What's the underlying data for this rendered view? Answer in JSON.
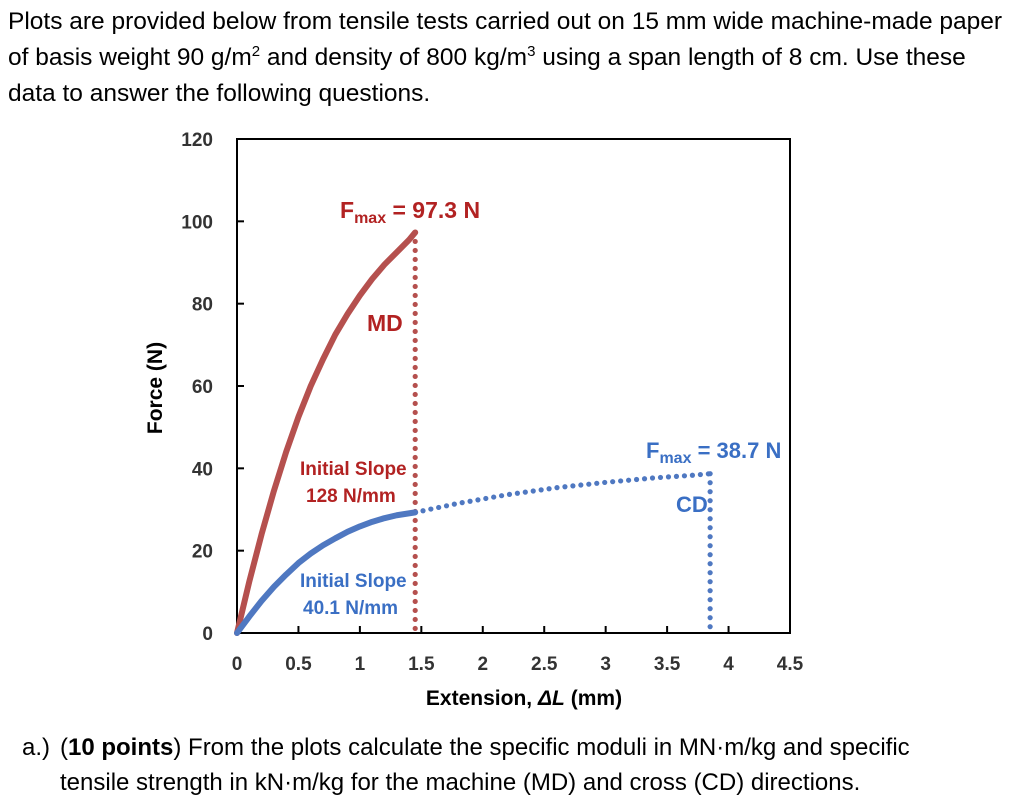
{
  "intro": {
    "part1": "Plots are provided below from tensile tests carried out on 15 mm wide machine-made paper of basis weight 90 g/m",
    "sup1": "2",
    "part2": " and density of 800 kg/m",
    "sup2": "3",
    "part3": " using a span length of 8 cm.  Use these data to answer the following questions."
  },
  "question": {
    "label": "a.)",
    "points_open": "(",
    "points": "10 points",
    "points_close": ")",
    "line1": " From the plots calculate the specific moduli in MN·m/kg and specific",
    "line2": "tensile strength in kN·m/kg for the machine (MD) and cross (CD) directions."
  },
  "chart_data": {
    "type": "line",
    "xlabel_main": "Extension, ",
    "xlabel_italic": "ΔL",
    "xlabel_unit": " (mm)",
    "ylabel": "Force (N)",
    "xlim": [
      0,
      4.5
    ],
    "ylim": [
      0,
      120
    ],
    "x_ticks": [
      "0",
      "0.5",
      "1",
      "1.5",
      "2",
      "2.5",
      "3",
      "3.5",
      "4",
      "4.5"
    ],
    "y_ticks": [
      "0",
      "20",
      "40",
      "60",
      "80",
      "100",
      "120"
    ],
    "grid": false,
    "series": [
      {
        "name": "MD",
        "color": "#b5504e",
        "marker_style": "solid-line",
        "x": [
          0,
          0.1,
          0.2,
          0.3,
          0.4,
          0.5,
          0.6,
          0.7,
          0.8,
          0.9,
          1.0,
          1.1,
          1.2,
          1.3,
          1.4,
          1.45
        ],
        "y": [
          0,
          12.5,
          24,
          34.5,
          44,
          52.5,
          60,
          66.5,
          72.5,
          77.5,
          82,
          86,
          89.5,
          92.5,
          95.5,
          97.3
        ]
      },
      {
        "name": "MD",
        "color": "#b5504e",
        "marker_style": "dotted-drop",
        "x": [
          1.45,
          1.45
        ],
        "y": [
          97.3,
          0
        ]
      },
      {
        "name": "CD",
        "color": "#4f78c1",
        "marker_style": "solid-line",
        "x": [
          0,
          0.1,
          0.2,
          0.3,
          0.4,
          0.5,
          0.6,
          0.7,
          0.8,
          0.9,
          1.0,
          1.1,
          1.2,
          1.3,
          1.45
        ],
        "y": [
          0,
          4,
          7.8,
          11.2,
          14.2,
          17,
          19.3,
          21.3,
          23,
          24.6,
          25.9,
          27,
          27.9,
          28.6,
          29.3
        ]
      },
      {
        "name": "CD",
        "color": "#4f78c1",
        "marker_style": "dotted",
        "x": [
          1.45,
          1.8,
          2.2,
          2.6,
          3.0,
          3.4,
          3.7,
          3.85
        ],
        "y": [
          29.3,
          31.5,
          33.6,
          35.3,
          36.6,
          37.7,
          38.3,
          38.7
        ]
      },
      {
        "name": "CD",
        "color": "#4f78c1",
        "marker_style": "dotted-drop",
        "x": [
          3.85,
          3.85
        ],
        "y": [
          38.7,
          0
        ]
      }
    ],
    "annotations": {
      "md_fmax_prefix": "F",
      "md_fmax_sub": "max",
      "md_fmax_value": " = 97.3 N",
      "md_label": "MD",
      "md_slope_line1": "Initial Slope",
      "md_slope_line2": "128 N/mm",
      "cd_fmax_prefix": "F",
      "cd_fmax_sub": "max",
      "cd_fmax_value": " = 38.7 N",
      "cd_label": "CD",
      "cd_slope_line1": "Initial Slope",
      "cd_slope_line2": "40.1 N/mm"
    },
    "colors": {
      "md": "#b5504e",
      "cd": "#4f78c1",
      "md_text": "#b22222",
      "cd_text": "#3a6fc4"
    }
  }
}
